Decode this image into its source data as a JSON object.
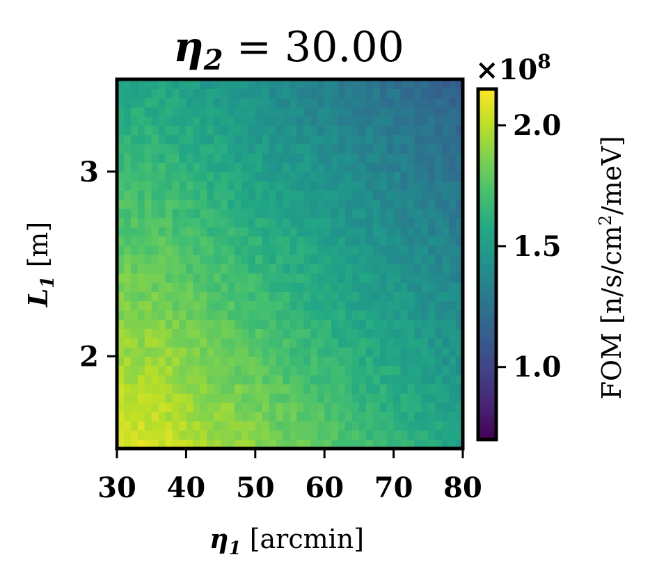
{
  "chart_data": {
    "type": "heatmap",
    "title": {
      "symbol": "η",
      "subscript": "2",
      "rest": " = 30.00"
    },
    "xlabel": {
      "symbol": "η",
      "subscript": "1",
      "rest": " [arcmin]"
    },
    "ylabel": {
      "symbol": "L",
      "subscript": "1",
      "rest": " [m]"
    },
    "x_range": [
      30,
      80
    ],
    "y_range": [
      1.5,
      3.5
    ],
    "x_ticks": [
      30,
      40,
      50,
      60,
      70,
      80
    ],
    "x_tick_labels": [
      "30",
      "40",
      "50",
      "60",
      "70",
      "80"
    ],
    "y_ticks": [
      2,
      3
    ],
    "y_tick_labels": [
      "2",
      "3"
    ],
    "grid": {
      "nx": 50,
      "ny": 40
    },
    "value_model": {
      "description": "FOM decreases with both eta1 and L1; peak near eta1=35-40, L1=1.6-2.0; minimum near eta1=75-80, L1=3.4",
      "max_value": 2.12,
      "min_value": 0.8,
      "noise": 0.06
    },
    "colorbar": {
      "label": "FOM [n/s/cm²/meV]",
      "label_parts": {
        "main": "FOM [n/s/cm",
        "sup": "2",
        "tail": "/meV]"
      },
      "scale_label": {
        "prefix": "×10",
        "exp": "8"
      },
      "range": [
        0.7,
        2.15
      ],
      "ticks": [
        1.0,
        1.5,
        2.0
      ],
      "tick_labels": [
        "1.0",
        "1.5",
        "2.0"
      ],
      "colormap": "viridis"
    },
    "colors": {
      "frame": "#000000",
      "background": "#ffffff"
    }
  }
}
